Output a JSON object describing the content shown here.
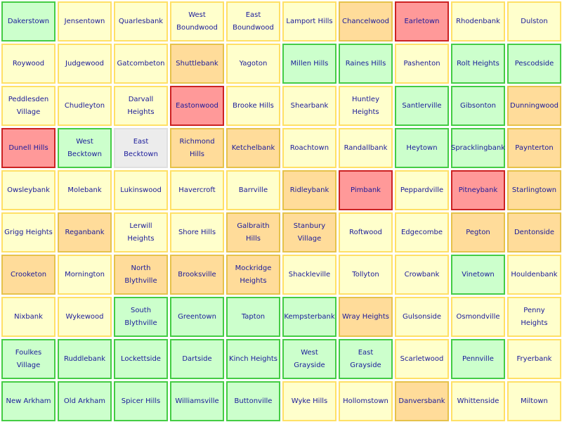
{
  "grid": {
    "rows": [
      [
        {
          "name": "Dakerstown",
          "status": "green"
        },
        {
          "name": "Jensentown",
          "status": "yellow"
        },
        {
          "name": "Quarlesbank",
          "status": "yellow"
        },
        {
          "name": "West Boundwood",
          "status": "yellow"
        },
        {
          "name": "East Boundwood",
          "status": "yellow"
        },
        {
          "name": "Lamport Hills",
          "status": "yellow"
        },
        {
          "name": "Chancelwood",
          "status": "orange"
        },
        {
          "name": "Earletown",
          "status": "red"
        },
        {
          "name": "Rhodenbank",
          "status": "yellow"
        },
        {
          "name": "Dulston",
          "status": "yellow"
        }
      ],
      [
        {
          "name": "Roywood",
          "status": "yellow"
        },
        {
          "name": "Judgewood",
          "status": "yellow"
        },
        {
          "name": "Gatcombeton",
          "status": "yellow"
        },
        {
          "name": "Shuttlebank",
          "status": "orange"
        },
        {
          "name": "Yagoton",
          "status": "yellow"
        },
        {
          "name": "Millen Hills",
          "status": "green"
        },
        {
          "name": "Raines Hills",
          "status": "green"
        },
        {
          "name": "Pashenton",
          "status": "yellow"
        },
        {
          "name": "Rolt Heights",
          "status": "green"
        },
        {
          "name": "Pescodside",
          "status": "green"
        }
      ],
      [
        {
          "name": "Peddlesden Village",
          "status": "yellow"
        },
        {
          "name": "Chudleyton",
          "status": "yellow"
        },
        {
          "name": "Darvall Heights",
          "status": "yellow"
        },
        {
          "name": "Eastonwood",
          "status": "red"
        },
        {
          "name": "Brooke Hills",
          "status": "yellow"
        },
        {
          "name": "Shearbank",
          "status": "yellow"
        },
        {
          "name": "Huntley Heights",
          "status": "yellow"
        },
        {
          "name": "Santlerville",
          "status": "green"
        },
        {
          "name": "Gibsonton",
          "status": "green"
        },
        {
          "name": "Dunningwood",
          "status": "orange"
        }
      ],
      [
        {
          "name": "Dunell Hills",
          "status": "red"
        },
        {
          "name": "West Becktown",
          "status": "green"
        },
        {
          "name": "East Becktown",
          "status": "gray"
        },
        {
          "name": "Richmond Hills",
          "status": "orange"
        },
        {
          "name": "Ketchelbank",
          "status": "orange"
        },
        {
          "name": "Roachtown",
          "status": "yellow"
        },
        {
          "name": "Randallbank",
          "status": "yellow"
        },
        {
          "name": "Heytown",
          "status": "green"
        },
        {
          "name": "Spracklingbank",
          "status": "green"
        },
        {
          "name": "Paynterton",
          "status": "orange"
        }
      ],
      [
        {
          "name": "Owsleybank",
          "status": "yellow"
        },
        {
          "name": "Molebank",
          "status": "yellow"
        },
        {
          "name": "Lukinswood",
          "status": "yellow"
        },
        {
          "name": "Havercroft",
          "status": "yellow"
        },
        {
          "name": "Barrville",
          "status": "yellow"
        },
        {
          "name": "Ridleybank",
          "status": "orange"
        },
        {
          "name": "Pimbank",
          "status": "red"
        },
        {
          "name": "Peppardville",
          "status": "yellow"
        },
        {
          "name": "Pitneybank",
          "status": "red"
        },
        {
          "name": "Starlingtown",
          "status": "orange"
        }
      ],
      [
        {
          "name": "Grigg Heights",
          "status": "yellow"
        },
        {
          "name": "Reganbank",
          "status": "orange"
        },
        {
          "name": "Lerwill Heights",
          "status": "yellow"
        },
        {
          "name": "Shore Hills",
          "status": "yellow"
        },
        {
          "name": "Galbraith Hills",
          "status": "orange"
        },
        {
          "name": "Stanbury Village",
          "status": "orange"
        },
        {
          "name": "Roftwood",
          "status": "yellow"
        },
        {
          "name": "Edgecombe",
          "status": "yellow"
        },
        {
          "name": "Pegton",
          "status": "orange"
        },
        {
          "name": "Dentonside",
          "status": "orange"
        }
      ],
      [
        {
          "name": "Crooketon",
          "status": "orange"
        },
        {
          "name": "Mornington",
          "status": "yellow"
        },
        {
          "name": "North Blythville",
          "status": "orange"
        },
        {
          "name": "Brooksville",
          "status": "orange"
        },
        {
          "name": "Mockridge Heights",
          "status": "orange"
        },
        {
          "name": "Shackleville",
          "status": "yellow"
        },
        {
          "name": "Tollyton",
          "status": "yellow"
        },
        {
          "name": "Crowbank",
          "status": "yellow"
        },
        {
          "name": "Vinetown",
          "status": "green"
        },
        {
          "name": "Houldenbank",
          "status": "yellow"
        }
      ],
      [
        {
          "name": "Nixbank",
          "status": "yellow"
        },
        {
          "name": "Wykewood",
          "status": "yellow"
        },
        {
          "name": "South Blythville",
          "status": "green"
        },
        {
          "name": "Greentown",
          "status": "green"
        },
        {
          "name": "Tapton",
          "status": "green"
        },
        {
          "name": "Kempsterbank",
          "status": "green"
        },
        {
          "name": "Wray Heights",
          "status": "orange"
        },
        {
          "name": "Gulsonside",
          "status": "yellow"
        },
        {
          "name": "Osmondville",
          "status": "yellow"
        },
        {
          "name": "Penny Heights",
          "status": "yellow"
        }
      ],
      [
        {
          "name": "Foulkes Village",
          "status": "green"
        },
        {
          "name": "Ruddlebank",
          "status": "green"
        },
        {
          "name": "Lockettside",
          "status": "green"
        },
        {
          "name": "Dartside",
          "status": "green"
        },
        {
          "name": "Kinch Heights",
          "status": "green"
        },
        {
          "name": "West Grayside",
          "status": "green"
        },
        {
          "name": "East Grayside",
          "status": "green"
        },
        {
          "name": "Scarletwood",
          "status": "yellow"
        },
        {
          "name": "Pennville",
          "status": "green"
        },
        {
          "name": "Fryerbank",
          "status": "yellow"
        }
      ],
      [
        {
          "name": "New Arkham",
          "status": "green"
        },
        {
          "name": "Old Arkham",
          "status": "green"
        },
        {
          "name": "Spicer Hills",
          "status": "green"
        },
        {
          "name": "Williamsville",
          "status": "green"
        },
        {
          "name": "Buttonville",
          "status": "green"
        },
        {
          "name": "Wyke Hills",
          "status": "yellow"
        },
        {
          "name": "Hollomstown",
          "status": "yellow"
        },
        {
          "name": "Danversbank",
          "status": "orange"
        },
        {
          "name": "Whittenside",
          "status": "yellow"
        },
        {
          "name": "Miltown",
          "status": "yellow"
        }
      ]
    ]
  }
}
